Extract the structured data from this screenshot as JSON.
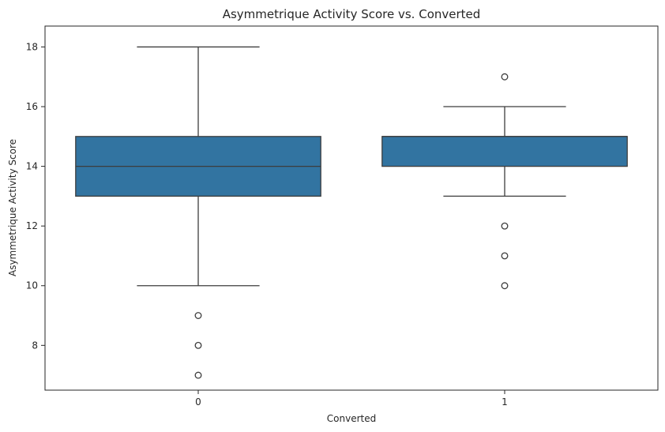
{
  "chart_data": {
    "type": "box",
    "title": "Asymmetrique Activity Score vs. Converted",
    "xlabel": "Converted",
    "ylabel": "Asymmetrique Activity Score",
    "categories": [
      "0",
      "1"
    ],
    "ylim": [
      6.5,
      18.7
    ],
    "yticks": [
      8,
      10,
      12,
      14,
      16,
      18
    ],
    "grid": false,
    "box_color": "#3274a1",
    "line_color": "#3d3d3d",
    "boxes": [
      {
        "category": "0",
        "whisker_low": 10,
        "q1": 13,
        "median": 14,
        "q3": 15,
        "whisker_high": 18,
        "outliers": [
          7,
          8,
          9
        ]
      },
      {
        "category": "1",
        "whisker_low": 13,
        "q1": 14,
        "median": 15,
        "q3": 15,
        "whisker_high": 16,
        "outliers": [
          10,
          11,
          12,
          17
        ]
      }
    ]
  }
}
